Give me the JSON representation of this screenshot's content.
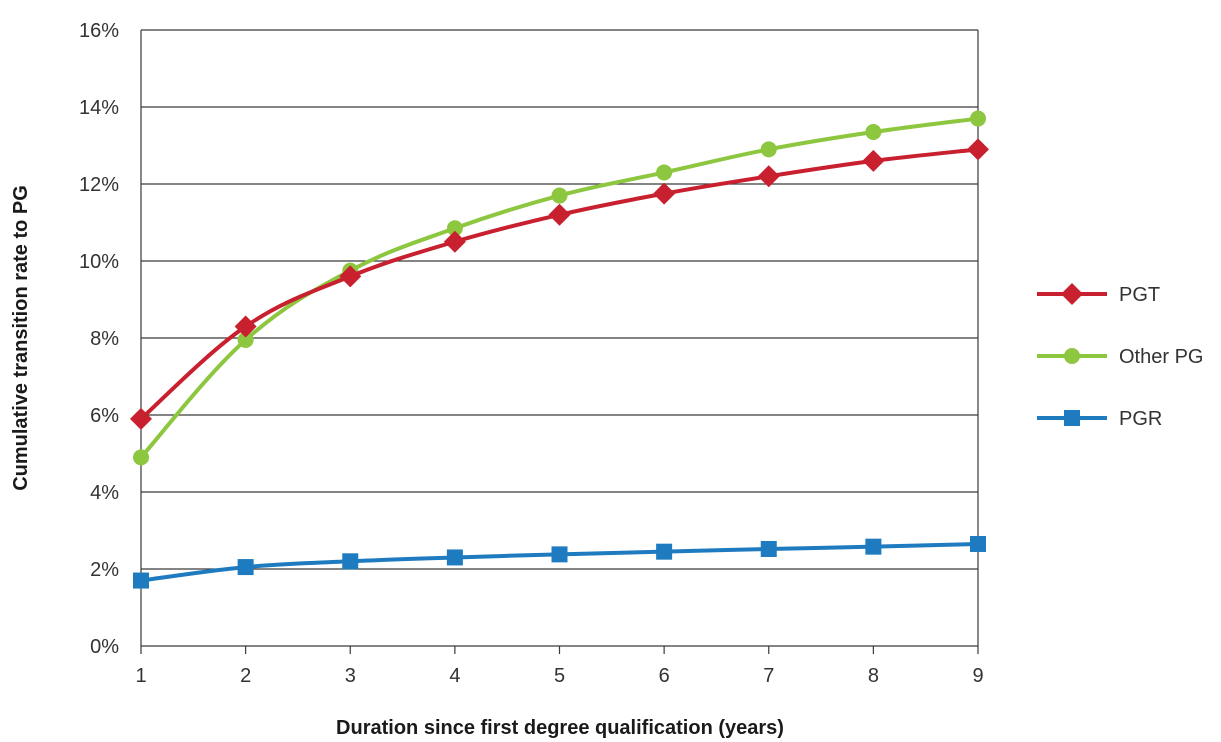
{
  "chart_data": {
    "type": "line",
    "title": "",
    "xlabel": "Duration since first degree qualification (years)",
    "ylabel": "Cumulative transition rate to PG",
    "x": [
      1,
      2,
      3,
      4,
      5,
      6,
      7,
      8,
      9
    ],
    "x_tick_labels": [
      "1",
      "2",
      "3",
      "4",
      "5",
      "6",
      "7",
      "8",
      "9"
    ],
    "ylim": [
      0,
      16
    ],
    "y_ticks": [
      0,
      2,
      4,
      6,
      8,
      10,
      12,
      14,
      16
    ],
    "y_tick_labels": [
      "0%",
      "2%",
      "4%",
      "6%",
      "8%",
      "10%",
      "12%",
      "14%",
      "16%"
    ],
    "y_unit": "%",
    "grid": "horizontal",
    "legend_position": "right",
    "series": [
      {
        "name": "PGT",
        "color": "#c8202f",
        "marker": "diamond",
        "values": [
          5.9,
          8.3,
          9.6,
          10.5,
          11.2,
          11.75,
          12.2,
          12.6,
          12.9
        ]
      },
      {
        "name": "Other PG",
        "color": "#8dc63f",
        "marker": "circle",
        "values": [
          4.9,
          7.95,
          9.75,
          10.85,
          11.7,
          12.3,
          12.9,
          13.35,
          13.7
        ]
      },
      {
        "name": "PGR",
        "color": "#1f7bbf",
        "marker": "square",
        "values": [
          1.7,
          2.05,
          2.2,
          2.3,
          2.38,
          2.45,
          2.52,
          2.58,
          2.65
        ]
      }
    ]
  }
}
